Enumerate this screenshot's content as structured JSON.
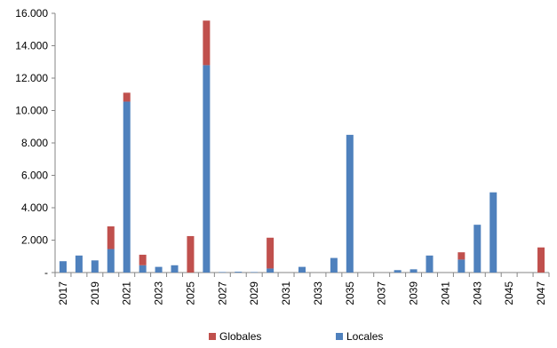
{
  "chart_data": {
    "type": "bar",
    "stacked": true,
    "categories": [
      "2017",
      "2018",
      "2019",
      "2020",
      "2021",
      "2022",
      "2023",
      "2024",
      "2025",
      "2026",
      "2027",
      "2028",
      "2029",
      "2030",
      "2031",
      "2032",
      "2033",
      "2034",
      "2035",
      "2036",
      "2037",
      "2038",
      "2039",
      "2040",
      "2041",
      "2042",
      "2043",
      "2044",
      "2045",
      "2046",
      "2047"
    ],
    "tick_labels": [
      "2017",
      "2019",
      "2021",
      "2023",
      "2025",
      "2027",
      "2029",
      "2031",
      "2033",
      "2035",
      "2037",
      "2039",
      "2041",
      "2043",
      "2045",
      "2047"
    ],
    "y_tick_labels": [
      "-",
      "2.000",
      "4.000",
      "6.000",
      "8.000",
      "10.000",
      "12.000",
      "14.000",
      "16.000"
    ],
    "series": [
      {
        "name": "Locales",
        "color": "#4F81BD",
        "values": [
          700,
          1050,
          750,
          1450,
          10550,
          450,
          350,
          450,
          0,
          12800,
          30,
          50,
          30,
          250,
          0,
          350,
          0,
          900,
          8500,
          0,
          0,
          150,
          200,
          1050,
          0,
          800,
          2950,
          4950,
          0,
          0,
          0
        ]
      },
      {
        "name": "Globales",
        "color": "#C0504D",
        "values": [
          0,
          0,
          0,
          1400,
          550,
          650,
          0,
          0,
          2250,
          2750,
          0,
          0,
          0,
          1900,
          0,
          0,
          0,
          0,
          0,
          0,
          0,
          0,
          0,
          0,
          0,
          450,
          0,
          0,
          0,
          0,
          1550
        ]
      }
    ],
    "legend_order": [
      "Globales",
      "Locales"
    ],
    "xlabel": "",
    "ylabel": "",
    "ylim": [
      0,
      16000
    ],
    "grid": false,
    "legend_position": "bottom"
  }
}
